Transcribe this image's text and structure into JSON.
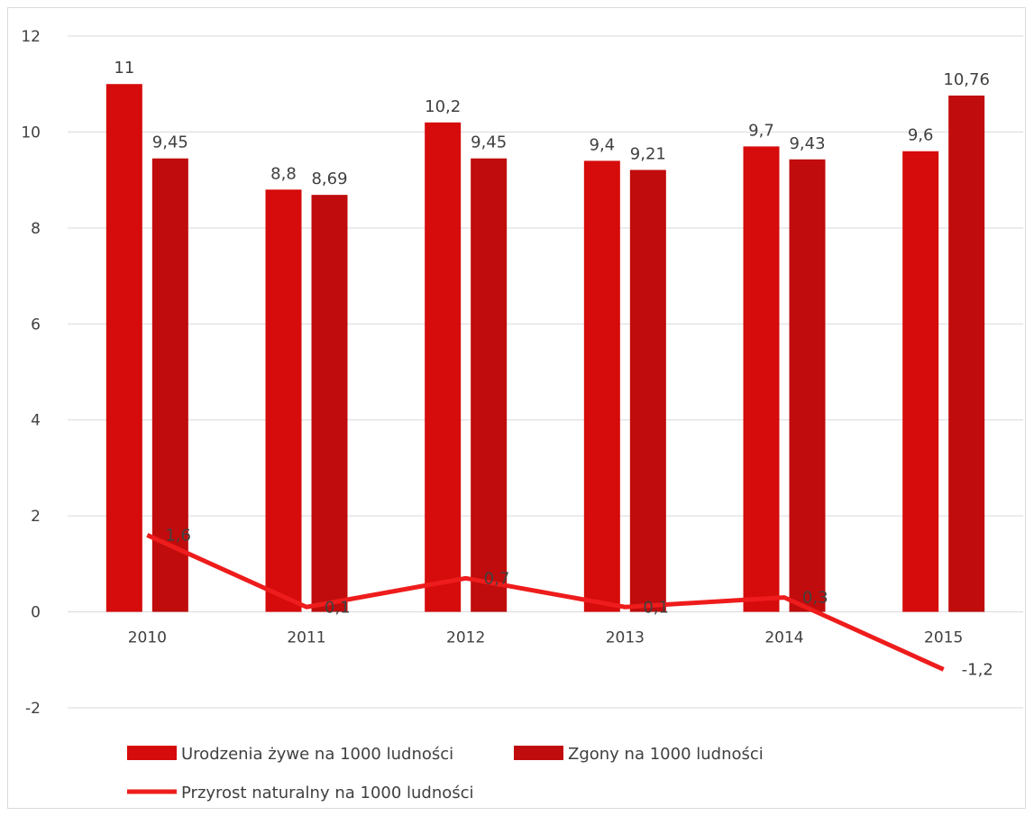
{
  "chart_data": {
    "type": "bar",
    "categories": [
      "2010",
      "2011",
      "2012",
      "2013",
      "2014",
      "2015"
    ],
    "ylim": [
      -2,
      12
    ],
    "yticks": [
      -2,
      0,
      2,
      4,
      6,
      8,
      10,
      12
    ],
    "grid": true,
    "legend_position": "bottom",
    "series": [
      {
        "name": "Urodzenia żywe na 1000 ludności",
        "kind": "bar",
        "color": "#d60b0b",
        "values": [
          11,
          8.8,
          10.2,
          9.4,
          9.7,
          9.6
        ],
        "labels": [
          "11",
          "8,8",
          "10,2",
          "9,4",
          "9,7",
          "9,6"
        ]
      },
      {
        "name": "Zgony na 1000 ludności",
        "kind": "bar",
        "color": "#c00c0c",
        "values": [
          9.45,
          8.69,
          9.45,
          9.21,
          9.43,
          10.76
        ],
        "labels": [
          "9,45",
          "8,69",
          "9,45",
          "9,21",
          "9,43",
          "10,76"
        ]
      },
      {
        "name": "Przyrost naturalny na 1000 ludności",
        "kind": "line",
        "color": "#ee1c1c",
        "values": [
          1.6,
          0.1,
          0.7,
          0.1,
          0.3,
          -1.2
        ],
        "labels": [
          "1,6",
          "0,1",
          "0,7",
          "0,1",
          "0,3",
          "-1,2"
        ]
      }
    ]
  }
}
